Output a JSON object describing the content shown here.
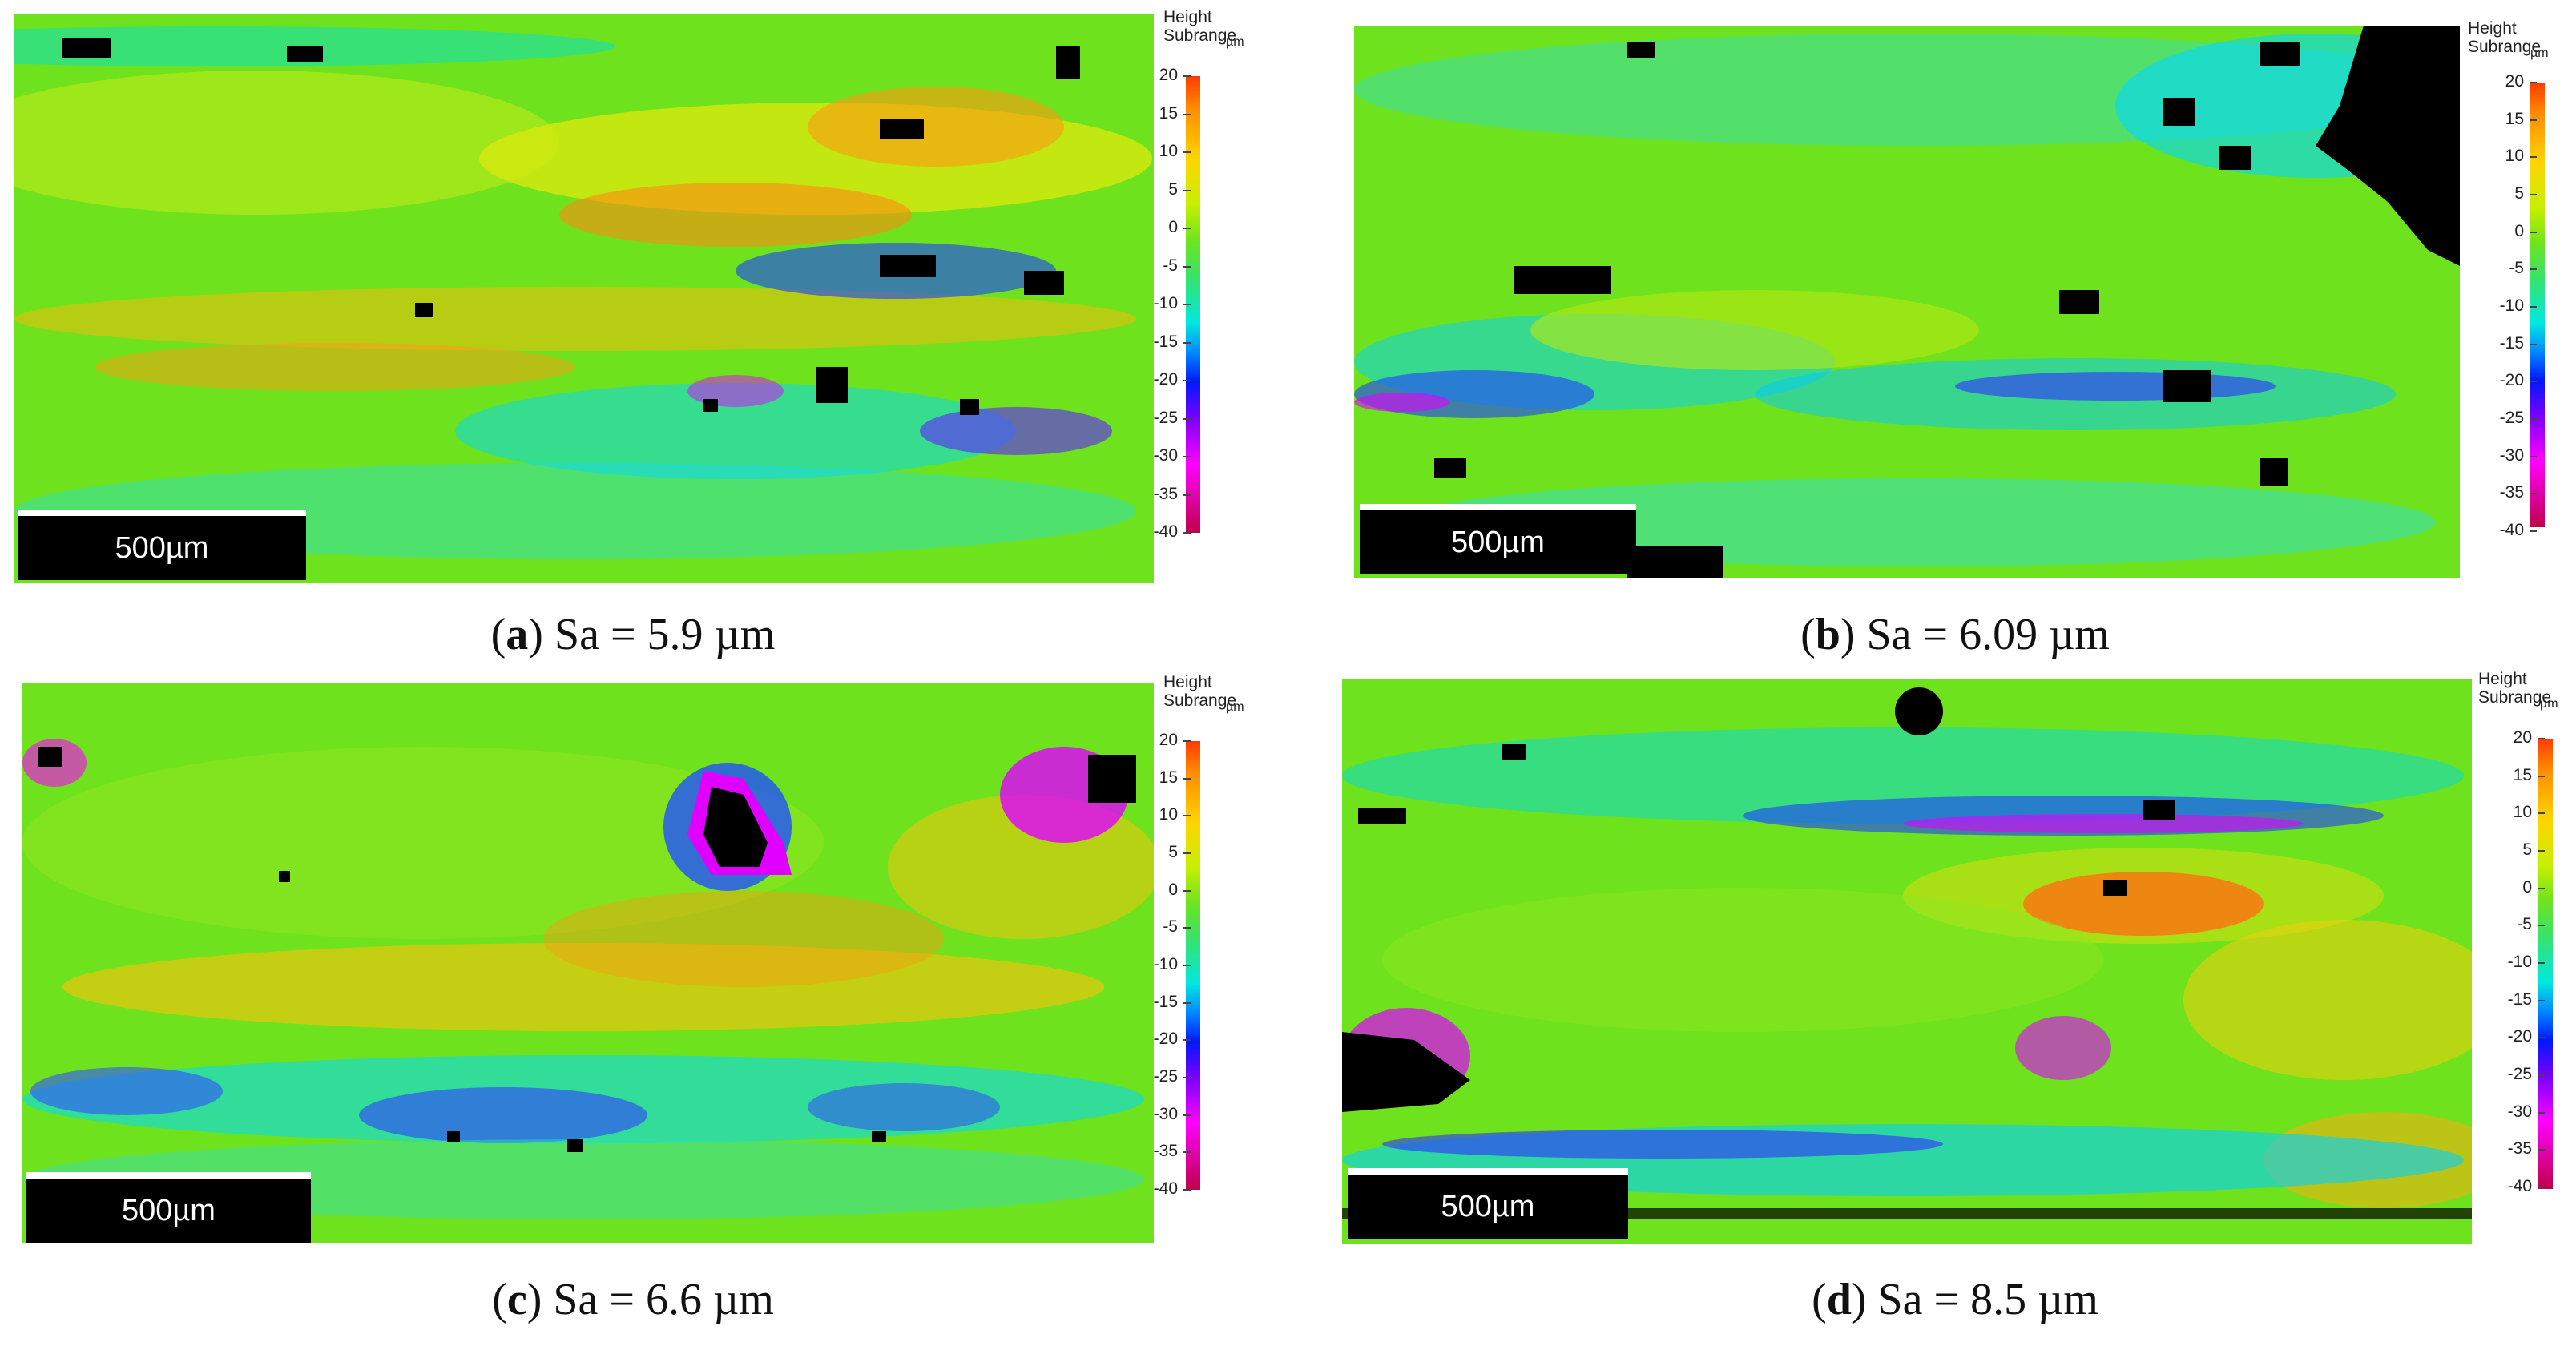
{
  "colorbar": {
    "title_line1": "Height",
    "title_line2": "Subrange",
    "unit": "µm",
    "ticks": [
      "20",
      "15",
      "10",
      "5",
      "0",
      "-5",
      "-10",
      "-15",
      "-20",
      "-25",
      "-30",
      "-35",
      "-40"
    ]
  },
  "panels": [
    {
      "letter": "a",
      "caption_rest": "Sa = 5.9 µm",
      "scale_label": "500µm"
    },
    {
      "letter": "b",
      "caption_rest": "Sa = 6.09 µm",
      "scale_label": "500µm"
    },
    {
      "letter": "c",
      "caption_rest": "Sa = 6.6 µm",
      "scale_label": "500µm"
    },
    {
      "letter": "d",
      "caption_rest": "Sa = 8.5 µm",
      "scale_label": "500µm"
    }
  ],
  "colors": {
    "high": "#ff3b00",
    "mid": "#66e019",
    "low": "#c0004a",
    "void": "#000000"
  }
}
